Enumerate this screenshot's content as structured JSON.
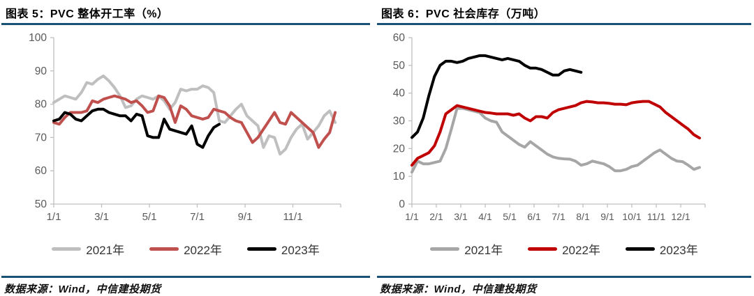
{
  "colors": {
    "rule": "#1A5276",
    "axis": "#BFBFBF",
    "tick_label": "#595959",
    "legend_label": "#333333"
  },
  "panels": [
    {
      "title": "图表 5：PVC 整体开工率（%）",
      "source_note": "数据来源：Wind，中信建投期货"
    },
    {
      "title": "图表 6：PVC 社会库存（万吨）",
      "source_note": "数据来源：Wind，中信建投期货"
    }
  ],
  "chart_data": [
    {
      "type": "line",
      "title": "图表 5：PVC 整体开工率（%）",
      "xlabel": "",
      "ylabel": "",
      "ylim": [
        50,
        100
      ],
      "yticks": [
        50,
        60,
        70,
        80,
        90,
        100
      ],
      "x_range_months": [
        0,
        12
      ],
      "x_step_months": 0.2308,
      "grid": false,
      "legend_position": "bottom",
      "xticks": [
        {
          "label": "1/1",
          "month": 0
        },
        {
          "label": "3/1",
          "month": 2
        },
        {
          "label": "5/1",
          "month": 4
        },
        {
          "label": "7/1",
          "month": 6
        },
        {
          "label": "9/1",
          "month": 8
        },
        {
          "label": "11/1",
          "month": 10
        }
      ],
      "axis_tick_months": [
        0,
        2,
        4,
        6,
        8,
        10,
        12
      ],
      "series": [
        {
          "name": "2021年",
          "color": "#BFBFBF",
          "values": [
            80.5,
            81.5,
            82.5,
            82,
            81.5,
            83.5,
            86.5,
            86,
            87.5,
            88.5,
            87,
            85,
            82.5,
            79,
            79.5,
            81.5,
            82.5,
            82,
            81.5,
            82.5,
            81,
            78.5,
            80.5,
            84.5,
            84,
            84.5,
            84.5,
            85.5,
            85,
            83.5,
            75,
            74.5,
            76.5,
            78.5,
            80,
            76.5,
            75,
            73.5,
            67,
            70.5,
            70,
            65,
            66.5,
            70,
            72.5,
            74,
            69.5,
            71.5,
            73.5,
            76.5,
            78,
            74.5
          ]
        },
        {
          "name": "2022年",
          "color": "#C0504D",
          "values": [
            74.5,
            74,
            76,
            77.5,
            77.5,
            77.5,
            78,
            81,
            80.5,
            81.5,
            82,
            82.5,
            82,
            81.5,
            80.5,
            81,
            79.5,
            77.5,
            78,
            82.5,
            82,
            79.5,
            74.5,
            79.5,
            78.5,
            76.5,
            76,
            75.5,
            76,
            78.5,
            78,
            77.5,
            76,
            75,
            74.5,
            71.5,
            68.5,
            70,
            72.5,
            75,
            77.5,
            74.5,
            74,
            77.5,
            76,
            74.5,
            73,
            71.5,
            67,
            69.5,
            71.5,
            77.5
          ]
        },
        {
          "name": "2023年",
          "color": "#000000",
          "values": [
            75,
            75.5,
            77.5,
            77,
            75.5,
            75,
            76.5,
            78,
            78.5,
            78.5,
            77.5,
            77,
            76.5,
            76.5,
            75,
            77,
            76.5,
            70.5,
            70,
            70,
            75.5,
            72.5,
            72,
            71.5,
            71,
            73.5,
            68,
            67,
            70.5,
            73,
            74
          ]
        }
      ]
    },
    {
      "type": "line",
      "title": "图表 6：PVC 社会库存（万吨）",
      "xlabel": "",
      "ylabel": "",
      "ylim": [
        0,
        60
      ],
      "yticks": [
        0,
        10,
        20,
        30,
        40,
        50,
        60
      ],
      "x_range_months": [
        0,
        12
      ],
      "x_step_months": 0.2308,
      "grid": false,
      "legend_position": "bottom",
      "xticks": [
        {
          "label": "1/1",
          "month": 0
        },
        {
          "label": "2/1",
          "month": 1
        },
        {
          "label": "3/1",
          "month": 2
        },
        {
          "label": "4/1",
          "month": 3
        },
        {
          "label": "5/1",
          "month": 4
        },
        {
          "label": "6/1",
          "month": 5
        },
        {
          "label": "7/1",
          "month": 6
        },
        {
          "label": "8/1",
          "month": 7
        },
        {
          "label": "9/1",
          "month": 8
        },
        {
          "label": "10/1",
          "month": 9
        },
        {
          "label": "11/1",
          "month": 10
        },
        {
          "label": "12/1",
          "month": 11
        }
      ],
      "axis_tick_months": [
        0,
        1,
        2,
        3,
        4,
        5,
        6,
        7,
        8,
        9,
        10,
        11,
        12
      ],
      "series": [
        {
          "name": "2021年",
          "color": "#A6A6A6",
          "values": [
            11.5,
            15.5,
            14.5,
            14.5,
            15,
            15.5,
            20,
            27,
            34.5,
            34.5,
            34,
            33.5,
            33,
            31,
            30,
            29.5,
            26,
            24.5,
            23,
            21.5,
            20.5,
            22.5,
            21,
            19.5,
            18,
            17,
            16.5,
            16.3,
            16.2,
            15.5,
            14,
            14.5,
            15.5,
            15,
            14.5,
            13.5,
            12,
            12,
            12.5,
            13.5,
            14,
            15.5,
            17,
            18.5,
            19.5,
            18,
            16.5,
            15.5,
            15.3,
            14,
            12.5,
            13.2
          ]
        },
        {
          "name": "2022年",
          "color": "#C00000",
          "values": [
            14,
            16.5,
            17.5,
            18.5,
            21,
            26,
            32.5,
            34,
            35.5,
            35,
            34.5,
            34,
            33.5,
            33,
            32.8,
            32.5,
            32.5,
            32.5,
            32,
            32.5,
            31,
            30,
            31.5,
            31.5,
            31,
            33,
            34,
            34.5,
            35,
            35.5,
            36.5,
            37,
            36.8,
            36.5,
            36.5,
            36.3,
            36,
            36,
            35.8,
            36.5,
            36.8,
            37,
            37,
            36,
            35,
            33,
            31.5,
            30,
            28.5,
            27,
            25,
            23.8
          ]
        },
        {
          "name": "2023年",
          "color": "#000000",
          "values": [
            24,
            26,
            31,
            39,
            46,
            50,
            51.5,
            51.5,
            51,
            51.5,
            52.5,
            53,
            53.5,
            53.5,
            53,
            52.5,
            52,
            52.5,
            52,
            51.5,
            50,
            49,
            49,
            48.5,
            47.5,
            46.5,
            46.5,
            48,
            48.5,
            48,
            47.5
          ]
        }
      ]
    }
  ]
}
